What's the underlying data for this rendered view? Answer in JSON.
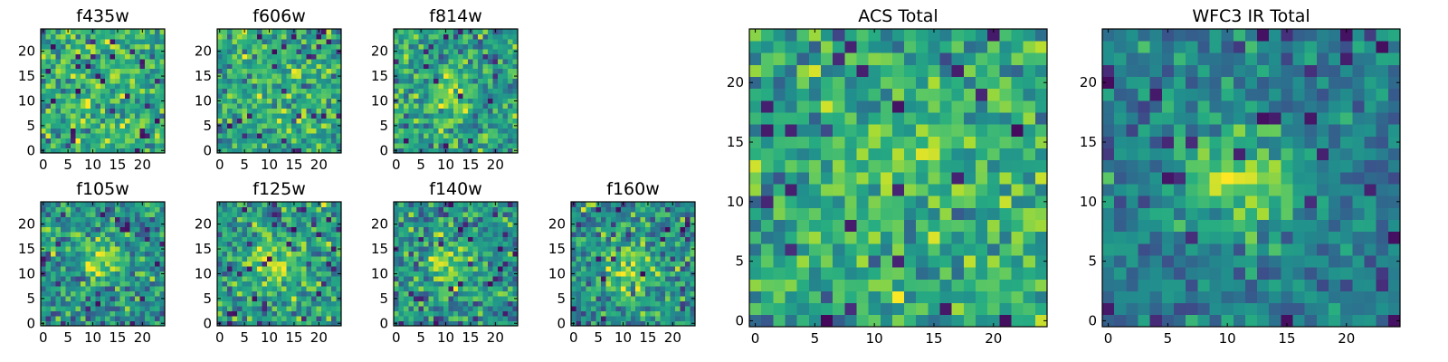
{
  "chart_data": {
    "type": "heatmap",
    "colormap": "viridis",
    "panels": [
      {
        "id": "f435w",
        "title": "f435w",
        "grid": 25,
        "xticks": [
          0,
          5,
          10,
          15,
          20
        ],
        "yticks": [
          0,
          5,
          10,
          15,
          20
        ],
        "vmin": 0,
        "vmax": 1,
        "blob": {
          "x": 12,
          "y": 12,
          "amp": 0.05
        },
        "base": 0.62,
        "noise": 0.22,
        "seed": 11
      },
      {
        "id": "f606w",
        "title": "f606w",
        "grid": 25,
        "xticks": [
          0,
          5,
          10,
          15,
          20
        ],
        "yticks": [
          0,
          5,
          10,
          15,
          20
        ],
        "vmin": 0,
        "vmax": 1,
        "blob": {
          "x": 11,
          "y": 12,
          "amp": 0.12
        },
        "base": 0.6,
        "noise": 0.22,
        "seed": 23
      },
      {
        "id": "f814w",
        "title": "f814w",
        "grid": 25,
        "xticks": [
          0,
          5,
          10,
          15,
          20
        ],
        "yticks": [
          0,
          5,
          10,
          15,
          20
        ],
        "vmin": 0,
        "vmax": 1,
        "blob": {
          "x": 11,
          "y": 12,
          "amp": 0.22
        },
        "base": 0.58,
        "noise": 0.22,
        "seed": 37
      },
      {
        "id": "f105w",
        "title": "f105w",
        "grid": 25,
        "xticks": [
          0,
          5,
          10,
          15,
          20
        ],
        "yticks": [
          0,
          5,
          10,
          15,
          20
        ],
        "vmin": 0,
        "vmax": 1,
        "blob": {
          "x": 12,
          "y": 13,
          "amp": 0.32
        },
        "base": 0.5,
        "noise": 0.22,
        "seed": 41
      },
      {
        "id": "f125w",
        "title": "f125w",
        "grid": 25,
        "xticks": [
          0,
          5,
          10,
          15,
          20
        ],
        "yticks": [
          0,
          5,
          10,
          15,
          20
        ],
        "vmin": 0,
        "vmax": 1,
        "blob": {
          "x": 11,
          "y": 12,
          "amp": 0.3
        },
        "base": 0.56,
        "noise": 0.22,
        "seed": 53
      },
      {
        "id": "f140w",
        "title": "f140w",
        "grid": 25,
        "xticks": [
          0,
          5,
          10,
          15,
          20
        ],
        "yticks": [
          0,
          5,
          10,
          15,
          20
        ],
        "vmin": 0,
        "vmax": 1,
        "blob": {
          "x": 11,
          "y": 11,
          "amp": 0.32
        },
        "base": 0.52,
        "noise": 0.22,
        "seed": 67
      },
      {
        "id": "f160w",
        "title": "f160w",
        "grid": 25,
        "xticks": [
          0,
          5,
          10,
          15,
          20
        ],
        "yticks": [
          0,
          5,
          10,
          15,
          20
        ],
        "vmin": 0,
        "vmax": 1,
        "blob": {
          "x": 12,
          "y": 11,
          "amp": 0.3
        },
        "base": 0.52,
        "noise": 0.22,
        "seed": 79
      },
      {
        "id": "acs-total",
        "title": "ACS Total",
        "grid": 25,
        "xticks": [
          0,
          5,
          10,
          15,
          20
        ],
        "yticks": [
          0,
          5,
          10,
          15,
          20
        ],
        "vmin": 0,
        "vmax": 1,
        "blob": {
          "x": 12,
          "y": 13,
          "amp": 0.14
        },
        "base": 0.6,
        "noise": 0.2,
        "seed": 97
      },
      {
        "id": "wfc3-ir-total",
        "title": "WFC3 IR Total",
        "grid": 25,
        "xticks": [
          0,
          5,
          10,
          15,
          20
        ],
        "yticks": [
          0,
          5,
          10,
          15,
          20
        ],
        "vmin": 0,
        "vmax": 1,
        "blob": {
          "x": 11,
          "y": 12,
          "amp": 0.42
        },
        "base": 0.42,
        "noise": 0.16,
        "seed": 113
      }
    ]
  }
}
